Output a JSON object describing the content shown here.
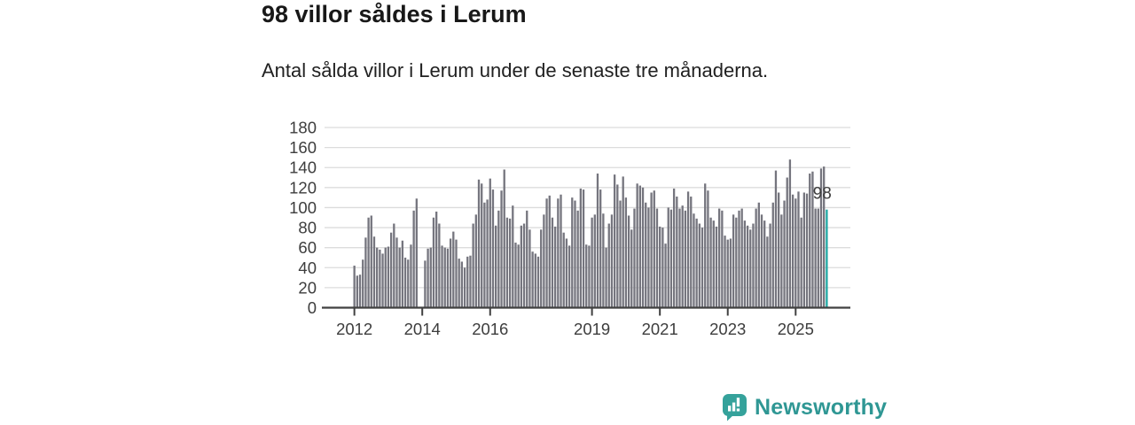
{
  "header": {
    "title": "98 villor såldes i Lerum",
    "subtitle": "Antal sålda villor i Lerum under de senaste tre månaderna."
  },
  "footer": {
    "brand_name": "Newsworthy",
    "brand_color": "#2f9794",
    "logo_mark_color": "#35a29b"
  },
  "chart_data": {
    "type": "bar",
    "title": "98 villor såldes i Lerum",
    "subtitle": "Antal sålda villor i Lerum under de senaste tre månaderna.",
    "frequency": "monthly",
    "start": "2012-01",
    "end": "2025-12",
    "ylim": [
      0,
      180
    ],
    "yticks": [
      0,
      20,
      40,
      60,
      80,
      100,
      120,
      140,
      160,
      180
    ],
    "grid": true,
    "legend": "none",
    "bar_color": "#75757e",
    "highlight_color": "#1fa8a3",
    "axis_color": "#404040",
    "gridline_color": "#dcdcdc",
    "label_color": "#3d3d3d",
    "highlight_index": 167,
    "annotation": {
      "text": "98",
      "value": 98
    },
    "xticks": [
      {
        "label": "2012",
        "month_index": 0
      },
      {
        "label": "2014",
        "month_index": 24
      },
      {
        "label": "2016",
        "month_index": 48
      },
      {
        "label": "2019",
        "month_index": 84
      },
      {
        "label": "2021",
        "month_index": 108
      },
      {
        "label": "2023",
        "month_index": 132
      },
      {
        "label": "2025",
        "month_index": 156
      }
    ],
    "values": [
      42,
      32,
      33,
      48,
      70,
      90,
      92,
      71,
      60,
      58,
      54,
      60,
      61,
      75,
      84,
      70,
      60,
      67,
      50,
      48,
      63,
      97,
      109,
      null,
      null,
      47,
      59,
      60,
      90,
      96,
      84,
      62,
      60,
      59,
      69,
      76,
      68,
      49,
      46,
      40,
      51,
      52,
      84,
      93,
      128,
      124,
      105,
      108,
      129,
      118,
      82,
      97,
      117,
      138,
      90,
      89,
      102,
      65,
      63,
      82,
      84,
      97,
      78,
      56,
      54,
      51,
      78,
      93,
      109,
      112,
      90,
      81,
      109,
      113,
      75,
      69,
      62,
      110,
      107,
      97,
      119,
      118,
      63,
      62,
      90,
      93,
      134,
      118,
      94,
      60,
      84,
      93,
      133,
      123,
      107,
      131,
      110,
      92,
      78,
      99,
      124,
      122,
      120,
      105,
      100,
      115,
      117,
      99,
      81,
      80,
      64,
      100,
      98,
      119,
      111,
      99,
      102,
      97,
      116,
      111,
      94,
      89,
      84,
      80,
      124,
      117,
      90,
      87,
      81,
      99,
      97,
      72,
      68,
      69,
      93,
      90,
      97,
      99,
      87,
      82,
      78,
      84,
      99,
      105,
      93,
      87,
      71,
      84,
      105,
      137,
      115,
      93,
      107,
      130,
      148,
      113,
      109,
      116,
      90,
      115,
      114,
      134,
      136,
      99,
      99,
      139,
      141,
      98
    ]
  },
  "layout_note": "monthly bars Jan 2012 - Dec 2025, last bar highlighted"
}
